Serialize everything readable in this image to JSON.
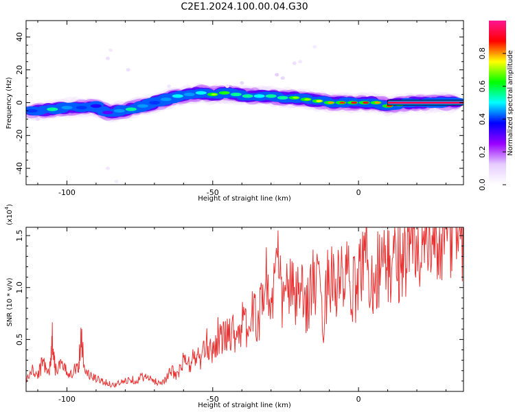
{
  "page": {
    "title": "C2E1.2024.100.00.04.G30"
  },
  "chart_data": [
    {
      "type": "heatmap",
      "title": "C2E1.2024.100.00.04.G30",
      "xlabel": "Height of straight line (km)",
      "ylabel": "Frequency (Hz)",
      "xlim": [
        -114,
        36
      ],
      "ylim": [
        -50,
        50
      ],
      "x_ticks": [
        -100,
        -50,
        0
      ],
      "y_ticks": [
        -40,
        -20,
        0,
        20,
        40
      ],
      "colorbar": {
        "label": "Normalized spectral amplitude",
        "range": [
          0,
          1
        ],
        "ticks": [
          0.0,
          0.2,
          0.4,
          0.6,
          0.8
        ],
        "colormap": [
          "#ffffff",
          "#e6ccff",
          "#9900ff",
          "#0000ff",
          "#00ffff",
          "#00ff00",
          "#ffff00",
          "#ff0000",
          "#ff1493"
        ]
      },
      "ridge": [
        {
          "x": -112,
          "y": -5,
          "amp": 0.4
        },
        {
          "x": -105,
          "y": -4,
          "amp": 0.55
        },
        {
          "x": -100,
          "y": -3,
          "amp": 0.45
        },
        {
          "x": -95,
          "y": -3,
          "amp": 0.4
        },
        {
          "x": -90,
          "y": -2,
          "amp": 0.35
        },
        {
          "x": -86,
          "y": -6,
          "amp": 0.3
        },
        {
          "x": -82,
          "y": -5,
          "amp": 0.45
        },
        {
          "x": -78,
          "y": -4,
          "amp": 0.55
        },
        {
          "x": -74,
          "y": -2,
          "amp": 0.45
        },
        {
          "x": -70,
          "y": 0,
          "amp": 0.4
        },
        {
          "x": -66,
          "y": 2,
          "amp": 0.45
        },
        {
          "x": -62,
          "y": 4,
          "amp": 0.5
        },
        {
          "x": -58,
          "y": 5,
          "amp": 0.45
        },
        {
          "x": -54,
          "y": 6,
          "amp": 0.5
        },
        {
          "x": -50,
          "y": 5,
          "amp": 0.7
        },
        {
          "x": -46,
          "y": 6,
          "amp": 0.65
        },
        {
          "x": -42,
          "y": 5,
          "amp": 0.55
        },
        {
          "x": -38,
          "y": 4,
          "amp": 0.55
        },
        {
          "x": -34,
          "y": 4,
          "amp": 0.5
        },
        {
          "x": -30,
          "y": 4,
          "amp": 0.55
        },
        {
          "x": -26,
          "y": 3,
          "amp": 0.55
        },
        {
          "x": -22,
          "y": 3,
          "amp": 0.7
        },
        {
          "x": -18,
          "y": 2,
          "amp": 0.7
        },
        {
          "x": -14,
          "y": 1,
          "amp": 0.75
        },
        {
          "x": -10,
          "y": 0,
          "amp": 0.8
        },
        {
          "x": -6,
          "y": 0,
          "amp": 0.85
        },
        {
          "x": -2,
          "y": 0,
          "amp": 0.9
        },
        {
          "x": 2,
          "y": 0,
          "amp": 0.9
        },
        {
          "x": 6,
          "y": 0,
          "amp": 0.8
        },
        {
          "x": 10,
          "y": -2,
          "amp": 0.85
        },
        {
          "x": 14,
          "y": -1,
          "amp": 0.8
        },
        {
          "x": 18,
          "y": 0,
          "amp": 0.95
        },
        {
          "x": 22,
          "y": 0,
          "amp": 0.95
        },
        {
          "x": 26,
          "y": 0,
          "amp": 0.95
        },
        {
          "x": 30,
          "y": 0,
          "amp": 0.95
        },
        {
          "x": 34,
          "y": 0,
          "amp": 0.95
        }
      ],
      "outliers": [
        {
          "x": -86,
          "y": 27,
          "amp": 0.08
        },
        {
          "x": -85,
          "y": 32,
          "amp": 0.05
        },
        {
          "x": -79,
          "y": 20,
          "amp": 0.08
        },
        {
          "x": -86,
          "y": -40,
          "amp": 0.06
        },
        {
          "x": -83,
          "y": -48,
          "amp": 0.05
        },
        {
          "x": -28,
          "y": 17,
          "amp": 0.12
        },
        {
          "x": -26,
          "y": 15,
          "amp": 0.1
        },
        {
          "x": -22,
          "y": 24,
          "amp": 0.08
        },
        {
          "x": -20,
          "y": 25,
          "amp": 0.06
        },
        {
          "x": -15,
          "y": 34,
          "amp": 0.05
        },
        {
          "x": -40,
          "y": 12,
          "amp": 0.1
        },
        {
          "x": -45,
          "y": 10,
          "amp": 0.08
        },
        {
          "x": -65,
          "y": 10,
          "amp": 0.06
        },
        {
          "x": -110,
          "y": -10,
          "amp": 0.1
        }
      ]
    },
    {
      "type": "line",
      "xlabel": "Height of straight line (km)",
      "ylabel": "SNR (10 * v/v)",
      "y_multiplier_label": "(x10",
      "y_multiplier_exp": "4",
      "xlim": [
        -114,
        36
      ],
      "ylim": [
        0,
        1.58
      ],
      "x_ticks": [
        -100,
        -50,
        0
      ],
      "y_ticks": [
        0.5,
        1.0,
        1.5
      ],
      "y_tick_labels": [
        "0.5",
        "1.0",
        "1.5"
      ],
      "series": [
        {
          "color": "#e83232",
          "x": [
            -114,
            -112,
            -110,
            -108,
            -106,
            -105,
            -104,
            -102,
            -100,
            -98,
            -96,
            -95,
            -94,
            -92,
            -90,
            -88,
            -86,
            -84,
            -82,
            -80,
            -78,
            -76,
            -74,
            -72,
            -70,
            -68,
            -66,
            -64,
            -62,
            -60,
            -58,
            -56,
            -54,
            -52,
            -50,
            -48,
            -46,
            -44,
            -42,
            -40,
            -38,
            -36,
            -34,
            -32,
            -30,
            -28,
            -26,
            -24,
            -22,
            -20,
            -18,
            -16,
            -14,
            -12,
            -10,
            -8,
            -6,
            -4,
            -2,
            0,
            2,
            4,
            6,
            8,
            10,
            12,
            14,
            16,
            18,
            20,
            22,
            24,
            26,
            28,
            30,
            32,
            34,
            36
          ],
          "y": [
            0.1,
            0.2,
            0.15,
            0.3,
            0.18,
            0.52,
            0.22,
            0.25,
            0.18,
            0.2,
            0.25,
            0.58,
            0.2,
            0.15,
            0.12,
            0.1,
            0.08,
            0.06,
            0.08,
            0.1,
            0.12,
            0.1,
            0.15,
            0.12,
            0.1,
            0.08,
            0.12,
            0.2,
            0.15,
            0.3,
            0.25,
            0.35,
            0.3,
            0.45,
            0.4,
            0.55,
            0.5,
            0.6,
            0.55,
            0.65,
            0.6,
            0.75,
            0.7,
            1.15,
            0.8,
            1.25,
            0.85,
            1.05,
            0.9,
            0.95,
            0.8,
            1.05,
            1.0,
            0.7,
            1.2,
            1.0,
            1.05,
            1.1,
            0.95,
            1.05,
            1.45,
            1.05,
            1.15,
            1.25,
            1.2,
            1.25,
            1.3,
            1.35,
            1.4,
            1.38,
            1.45,
            1.42,
            1.5,
            1.48,
            1.55,
            1.52,
            1.56,
            1.54
          ]
        }
      ]
    }
  ]
}
